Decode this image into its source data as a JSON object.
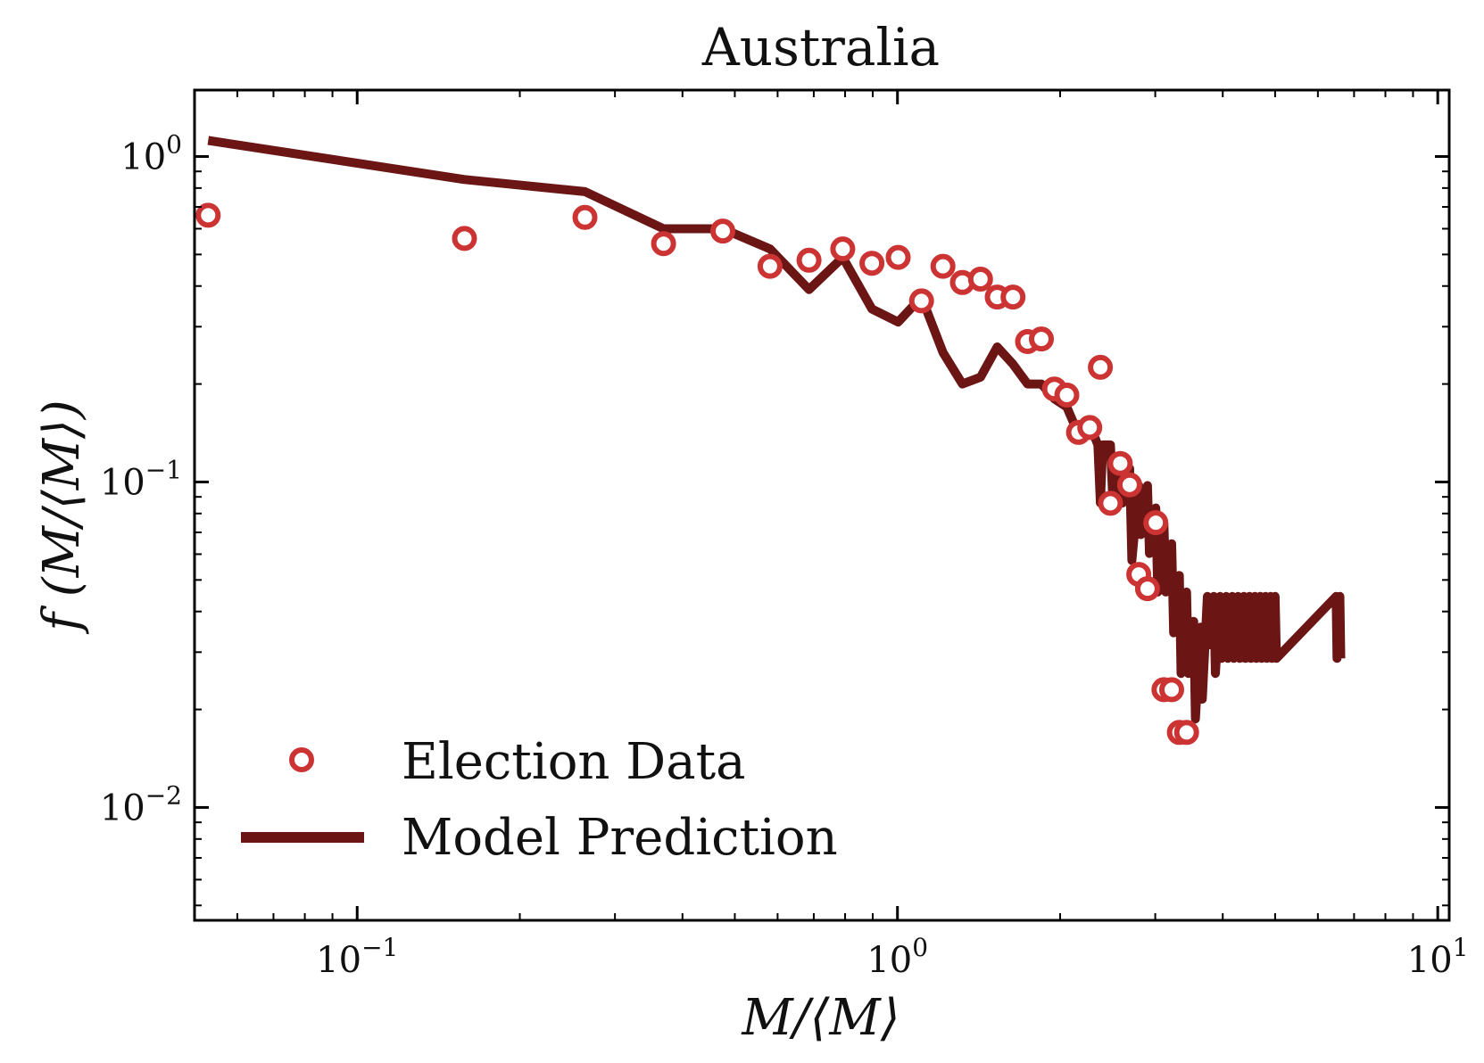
{
  "chart_data": {
    "type": "scatter",
    "title": "Australia",
    "xlabel": "M/⟨M⟩",
    "ylabel": "f (M/⟨M⟩)",
    "xscale": "log",
    "yscale": "log",
    "xlim": [
      0.05,
      10.5
    ],
    "ylim": [
      0.0045,
      1.6
    ],
    "xticks": [
      {
        "value": 0.1,
        "base": "10",
        "exp": "−1"
      },
      {
        "value": 1,
        "base": "10",
        "exp": "0"
      },
      {
        "value": 10,
        "base": "10",
        "exp": "1"
      }
    ],
    "yticks": [
      {
        "value": 0.01,
        "base": "10",
        "exp": "−2"
      },
      {
        "value": 0.1,
        "base": "10",
        "exp": "−1"
      },
      {
        "value": 1,
        "base": "10",
        "exp": "0"
      }
    ],
    "grid": false,
    "legend_position": "lower-left",
    "colors": {
      "election": "#cc3333",
      "model": "#6b1515"
    },
    "series": [
      {
        "name": "Election Data",
        "kind": "markers",
        "x": [
          0.053,
          0.158,
          0.264,
          0.369,
          0.475,
          0.581,
          0.686,
          0.792,
          0.897,
          1.003,
          1.108,
          1.214,
          1.319,
          1.425,
          1.53,
          1.636,
          1.741,
          1.847,
          1.952,
          2.058,
          2.163,
          2.269,
          2.374,
          2.479,
          2.585,
          2.69,
          2.796,
          2.902,
          3.007,
          3.113,
          3.218,
          3.324,
          3.429
        ],
        "y": [
          0.66,
          0.56,
          0.65,
          0.54,
          0.59,
          0.46,
          0.48,
          0.52,
          0.47,
          0.49,
          0.36,
          0.46,
          0.41,
          0.42,
          0.37,
          0.37,
          0.27,
          0.275,
          0.193,
          0.185,
          0.142,
          0.147,
          0.225,
          0.086,
          0.114,
          0.098,
          0.052,
          0.047,
          0.075,
          0.023,
          0.023,
          0.017,
          0.017
        ]
      },
      {
        "name": "Model Prediction",
        "kind": "line",
        "x": [
          0.053,
          0.158,
          0.264,
          0.369,
          0.475,
          0.581,
          0.686,
          0.792,
          0.897,
          1.003,
          1.108,
          1.214,
          1.319,
          1.425,
          1.53,
          1.636,
          1.741,
          1.847,
          1.952,
          2.058,
          2.163,
          2.269,
          2.349,
          2.374,
          2.399,
          2.479,
          2.505,
          2.585,
          2.61,
          2.69,
          2.716,
          2.796,
          2.821,
          2.902,
          2.927,
          3.007,
          3.032,
          3.113,
          3.138,
          3.218,
          3.244,
          3.324,
          3.349,
          3.429,
          3.455,
          3.535,
          3.56,
          3.64,
          3.666,
          3.746,
          3.771,
          3.851,
          3.877,
          3.956,
          3.982,
          4.062,
          4.088,
          4.168,
          4.193,
          4.273,
          4.299,
          4.379,
          4.404,
          4.484,
          4.51,
          4.59,
          4.615,
          4.695,
          4.72,
          4.801,
          4.826,
          4.906,
          4.932,
          5.0,
          5.028,
          6.484,
          6.51,
          6.589,
          6.615
        ],
        "y": [
          1.12,
          0.85,
          0.78,
          0.6,
          0.6,
          0.52,
          0.39,
          0.49,
          0.34,
          0.31,
          0.37,
          0.25,
          0.2,
          0.21,
          0.26,
          0.23,
          0.2,
          0.2,
          0.18,
          0.17,
          0.14,
          0.15,
          0.13,
          0.0862,
          0.13,
          0.13,
          0.0862,
          0.12,
          0.0862,
          0.11,
          0.0574,
          0.0975,
          0.0689,
          0.0975,
          0.0603,
          0.0832,
          0.0459,
          0.0746,
          0.0459,
          0.0646,
          0.0344,
          0.0516,
          0.0258,
          0.0459,
          0.0258,
          0.0373,
          0.0187,
          0.0358,
          0.0215,
          0.0445,
          0.0316,
          0.0445,
          0.0258,
          0.0445,
          0.0287,
          0.0445,
          0.0287,
          0.0445,
          0.0287,
          0.0445,
          0.0287,
          0.0445,
          0.0287,
          0.0445,
          0.0287,
          0.0445,
          0.0287,
          0.0445,
          0.0287,
          0.0445,
          0.0287,
          0.0445,
          0.0287,
          0.0445,
          0.0287,
          0.0445,
          0.0287,
          0.0445,
          0.0287
        ]
      }
    ]
  }
}
